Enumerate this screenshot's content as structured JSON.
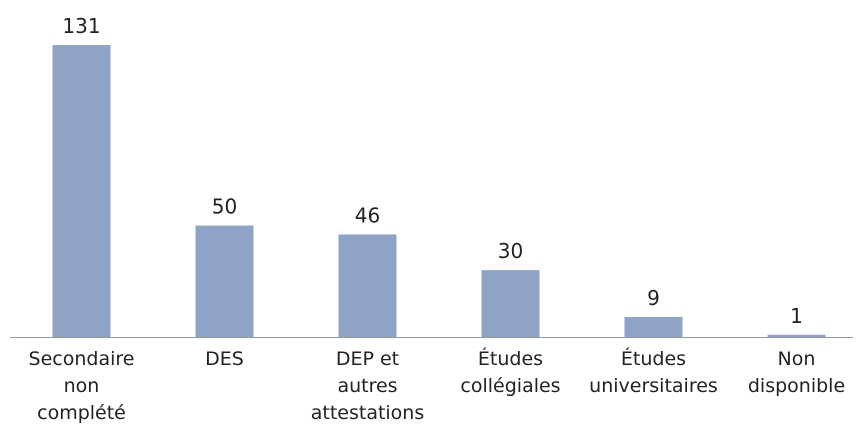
{
  "chart_data": {
    "type": "bar",
    "categories": [
      "Secondaire\nnon\ncomplété",
      "DES",
      "DEP et\nautres\nattestations",
      "Études\ncollégiales",
      "Études\nuniversitaires",
      "Non\ndisponible"
    ],
    "values": [
      131,
      50,
      46,
      30,
      9,
      1
    ],
    "color": "#8ea3c5"
  }
}
